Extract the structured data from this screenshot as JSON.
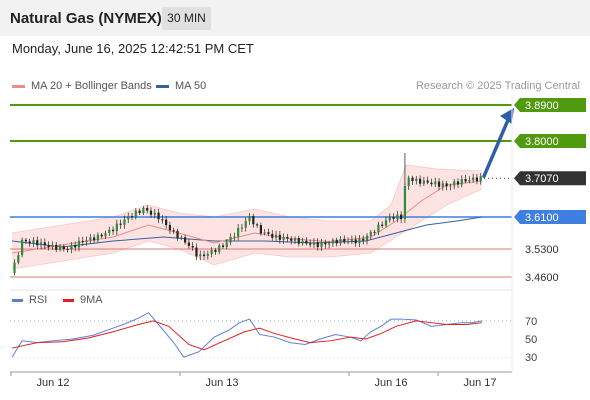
{
  "header": {
    "title": "Natural Gas (NYMEX)",
    "timeframe": "30 MIN",
    "datetime": "Monday, June 16, 2025 12:42:51 PM CET"
  },
  "legend": {
    "items": [
      {
        "label": "MA 20 + Bollinger Bands",
        "color": "#f08b86"
      },
      {
        "label": "MA 50",
        "color": "#3a5f9a"
      }
    ],
    "credit": "Research © 2025 Trading Central"
  },
  "rsi_legend": {
    "items": [
      {
        "label": "RSI",
        "color": "#5b7fd6"
      },
      {
        "label": "9MA",
        "color": "#e02020"
      }
    ]
  },
  "chart_data": [
    {
      "type": "candlestick",
      "x_ticks": [
        "Jun 12",
        "Jun 13",
        "Jun 16",
        "Jun 17"
      ],
      "ylim": [
        3.44,
        3.91
      ],
      "levels": [
        {
          "value": 3.89,
          "label": "3.8900",
          "kind": "resistance",
          "color": "#4f9a0e"
        },
        {
          "value": 3.8,
          "label": "3.8000",
          "kind": "resistance",
          "color": "#4f9a0e"
        },
        {
          "value": 3.707,
          "label": "3.7070",
          "kind": "last",
          "color": "#333333"
        },
        {
          "value": 3.61,
          "label": "3.6100",
          "kind": "pivot",
          "color": "#3f7fe0"
        },
        {
          "value": 3.53,
          "label": "3.5300",
          "kind": "support",
          "color": "#e07a75"
        },
        {
          "value": 3.46,
          "label": "3.4600",
          "kind": "support",
          "color": "#e07a75"
        }
      ],
      "arrow": {
        "from": 3.707,
        "to": 3.89,
        "direction": "up"
      },
      "price_path": [
        [
          0,
          3.47
        ],
        [
          4,
          3.55
        ],
        [
          10,
          3.545
        ],
        [
          16,
          3.535
        ],
        [
          22,
          3.53
        ],
        [
          28,
          3.55
        ],
        [
          34,
          3.56
        ],
        [
          40,
          3.58
        ],
        [
          46,
          3.61
        ],
        [
          52,
          3.63
        ],
        [
          58,
          3.61
        ],
        [
          64,
          3.57
        ],
        [
          70,
          3.54
        ],
        [
          74,
          3.51
        ],
        [
          78,
          3.52
        ],
        [
          84,
          3.54
        ],
        [
          90,
          3.58
        ],
        [
          94,
          3.61
        ],
        [
          98,
          3.575
        ],
        [
          104,
          3.56
        ],
        [
          110,
          3.555
        ],
        [
          116,
          3.545
        ],
        [
          122,
          3.54
        ],
        [
          128,
          3.55
        ],
        [
          134,
          3.55
        ],
        [
          138,
          3.55
        ],
        [
          142,
          3.57
        ],
        [
          146,
          3.59
        ],
        [
          150,
          3.61
        ],
        [
          154,
          3.61
        ],
        [
          156,
          3.71
        ],
        [
          160,
          3.7
        ],
        [
          166,
          3.695
        ],
        [
          172,
          3.688
        ],
        [
          178,
          3.7
        ],
        [
          183,
          3.705
        ],
        [
          186,
          3.707
        ]
      ],
      "ma20_path": [
        [
          0,
          3.52
        ],
        [
          20,
          3.54
        ],
        [
          40,
          3.56
        ],
        [
          54,
          3.59
        ],
        [
          66,
          3.57
        ],
        [
          80,
          3.545
        ],
        [
          96,
          3.57
        ],
        [
          110,
          3.556
        ],
        [
          126,
          3.548
        ],
        [
          142,
          3.56
        ],
        [
          152,
          3.6
        ],
        [
          162,
          3.65
        ],
        [
          172,
          3.69
        ],
        [
          186,
          3.7
        ]
      ],
      "ma50_path": [
        [
          0,
          3.55
        ],
        [
          20,
          3.535
        ],
        [
          40,
          3.55
        ],
        [
          60,
          3.56
        ],
        [
          80,
          3.55
        ],
        [
          100,
          3.55
        ],
        [
          120,
          3.545
        ],
        [
          140,
          3.55
        ],
        [
          152,
          3.57
        ],
        [
          164,
          3.59
        ],
        [
          176,
          3.6
        ],
        [
          186,
          3.61
        ]
      ],
      "bollinger": {
        "upper": [
          [
            0,
            3.57
          ],
          [
            20,
            3.59
          ],
          [
            40,
            3.61
          ],
          [
            54,
            3.64
          ],
          [
            66,
            3.62
          ],
          [
            80,
            3.61
          ],
          [
            96,
            3.63
          ],
          [
            110,
            3.61
          ],
          [
            126,
            3.6
          ],
          [
            142,
            3.6
          ],
          [
            150,
            3.64
          ],
          [
            156,
            3.74
          ],
          [
            168,
            3.73
          ],
          [
            186,
            3.725
          ]
        ],
        "lower": [
          [
            0,
            3.48
          ],
          [
            20,
            3.5
          ],
          [
            40,
            3.52
          ],
          [
            54,
            3.55
          ],
          [
            66,
            3.53
          ],
          [
            80,
            3.49
          ],
          [
            96,
            3.52
          ],
          [
            110,
            3.51
          ],
          [
            126,
            3.51
          ],
          [
            142,
            3.52
          ],
          [
            152,
            3.56
          ],
          [
            162,
            3.6
          ],
          [
            172,
            3.64
          ],
          [
            186,
            3.68
          ]
        ]
      }
    },
    {
      "type": "line",
      "title": "RSI",
      "y_ticks": [
        70,
        50,
        30
      ],
      "ylim": [
        18,
        82
      ],
      "series": [
        {
          "name": "RSI",
          "color": "#5b7fd6",
          "points": [
            [
              0,
              30
            ],
            [
              4,
              48
            ],
            [
              10,
              46
            ],
            [
              16,
              48
            ],
            [
              24,
              50
            ],
            [
              32,
              54
            ],
            [
              38,
              60
            ],
            [
              44,
              66
            ],
            [
              50,
              73
            ],
            [
              54,
              79
            ],
            [
              58,
              66
            ],
            [
              64,
              46
            ],
            [
              68,
              30
            ],
            [
              74,
              36
            ],
            [
              80,
              52
            ],
            [
              86,
              60
            ],
            [
              90,
              68
            ],
            [
              94,
              72
            ],
            [
              98,
              55
            ],
            [
              104,
              52
            ],
            [
              110,
              46
            ],
            [
              116,
              44
            ],
            [
              122,
              50
            ],
            [
              128,
              55
            ],
            [
              134,
              52
            ],
            [
              138,
              48
            ],
            [
              142,
              58
            ],
            [
              146,
              64
            ],
            [
              150,
              72
            ],
            [
              154,
              72
            ],
            [
              160,
              71
            ],
            [
              166,
              64
            ],
            [
              172,
              66
            ],
            [
              178,
              68
            ],
            [
              182,
              68
            ],
            [
              186,
              70
            ]
          ]
        },
        {
          "name": "9MA",
          "color": "#e02020",
          "points": [
            [
              0,
              40
            ],
            [
              10,
              46
            ],
            [
              20,
              47
            ],
            [
              30,
              51
            ],
            [
              40,
              58
            ],
            [
              50,
              66
            ],
            [
              56,
              70
            ],
            [
              62,
              64
            ],
            [
              70,
              44
            ],
            [
              76,
              38
            ],
            [
              84,
              48
            ],
            [
              92,
              58
            ],
            [
              98,
              62
            ],
            [
              104,
              56
            ],
            [
              112,
              50
            ],
            [
              118,
              46
            ],
            [
              126,
              48
            ],
            [
              134,
              52
            ],
            [
              140,
              50
            ],
            [
              146,
              56
            ],
            [
              152,
              64
            ],
            [
              160,
              70
            ],
            [
              166,
              68
            ],
            [
              172,
              66
            ],
            [
              180,
              66
            ],
            [
              186,
              68
            ]
          ]
        }
      ]
    }
  ]
}
